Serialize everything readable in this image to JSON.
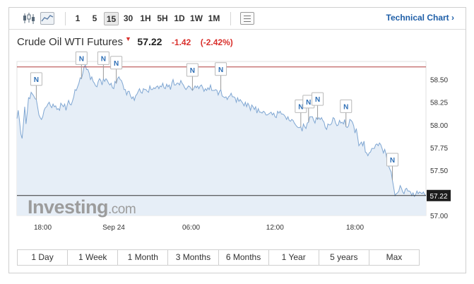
{
  "toolbar": {
    "timeframes": [
      "1",
      "5",
      "15",
      "30",
      "1H",
      "5H",
      "1D",
      "1W",
      "1M"
    ],
    "active_timeframe": "15",
    "technical_chart_label": "Technical Chart ›"
  },
  "header": {
    "instrument": "Crude Oil WTI Futures",
    "price": "57.22",
    "change": "-1.42",
    "change_pct": "(-2.42%)"
  },
  "watermark": {
    "brand": "Investing",
    "suffix": ".com"
  },
  "range_buttons": [
    "1 Day",
    "1 Week",
    "1 Month",
    "3 Months",
    "6 Months",
    "1 Year",
    "5 years",
    "Max"
  ],
  "colors": {
    "down": "#d9302c",
    "link": "#1f5fa8",
    "line": "#7fa6d2",
    "area": "#e6eef7",
    "prev_close": "#b03a3a"
  },
  "chart_data": {
    "type": "area",
    "ylim": [
      57.0,
      58.7
    ],
    "y_ticks": [
      58.5,
      58.25,
      58.0,
      57.75,
      57.5,
      57.0
    ],
    "y_tick_labels": [
      "58.50",
      "58.25",
      "58.00",
      "57.75",
      "57.50",
      "57.00"
    ],
    "x_tick_labels": [
      "18:00",
      "Sep 24",
      "06:00",
      "12:00",
      "18:00"
    ],
    "x_tick_index": [
      20,
      75,
      135,
      200,
      262
    ],
    "last_price": 57.22,
    "last_price_label": "57.22",
    "previous_close": 58.64,
    "news_marker_label": "N",
    "news_markers": [
      15,
      50,
      67,
      77,
      136,
      158,
      220,
      226,
      233,
      255,
      291
    ],
    "values": [
      58.07,
      58.16,
      58.04,
      57.9,
      57.85,
      58.01,
      58.2,
      58.01,
      58.14,
      58.3,
      58.29,
      58.36,
      58.34,
      58.32,
      58.29,
      58.28,
      58.2,
      58.11,
      58.08,
      58.06,
      58.09,
      58.16,
      58.19,
      58.2,
      58.23,
      58.25,
      58.21,
      58.19,
      58.23,
      58.2,
      58.21,
      58.17,
      58.18,
      58.16,
      58.24,
      58.22,
      58.2,
      58.23,
      58.16,
      58.22,
      58.27,
      58.23,
      58.22,
      58.26,
      58.31,
      58.39,
      58.38,
      58.42,
      58.46,
      58.52,
      58.51,
      58.57,
      58.64,
      58.66,
      58.61,
      58.61,
      58.57,
      58.5,
      58.53,
      58.48,
      58.46,
      58.43,
      58.42,
      58.48,
      58.51,
      58.49,
      58.44,
      58.51,
      58.48,
      58.51,
      58.49,
      58.46,
      58.44,
      58.46,
      58.41,
      58.4,
      58.48,
      58.46,
      58.51,
      58.53,
      58.5,
      58.49,
      58.45,
      58.39,
      58.39,
      58.33,
      58.37,
      58.37,
      58.32,
      58.29,
      58.31,
      58.27,
      58.32,
      58.34,
      58.37,
      58.4,
      58.36,
      58.35,
      58.4,
      58.39,
      58.39,
      58.37,
      58.36,
      58.43,
      58.39,
      58.39,
      58.41,
      58.4,
      58.42,
      58.43,
      58.4,
      58.43,
      58.42,
      58.46,
      58.41,
      58.4,
      58.45,
      58.42,
      58.44,
      58.39,
      58.46,
      58.5,
      58.44,
      58.44,
      58.46,
      58.46,
      58.44,
      58.49,
      58.46,
      58.44,
      58.41,
      58.39,
      58.41,
      58.43,
      58.42,
      58.4,
      58.38,
      58.4,
      58.43,
      58.41,
      58.43,
      58.4,
      58.43,
      58.44,
      58.41,
      58.37,
      58.4,
      58.38,
      58.41,
      58.39,
      58.44,
      58.38,
      58.38,
      58.38,
      58.39,
      58.38,
      58.33,
      58.37,
      58.39,
      58.32,
      58.31,
      58.3,
      58.31,
      58.28,
      58.31,
      58.32,
      58.35,
      58.31,
      58.31,
      58.3,
      58.25,
      58.3,
      58.26,
      58.28,
      58.26,
      58.24,
      58.21,
      58.25,
      58.2,
      58.24,
      58.21,
      58.16,
      58.22,
      58.2,
      58.17,
      58.2,
      58.13,
      58.18,
      58.14,
      58.14,
      58.13,
      58.15,
      58.14,
      58.11,
      58.11,
      58.12,
      58.13,
      58.14,
      58.11,
      58.13,
      58.09,
      58.08,
      58.15,
      58.13,
      58.15,
      58.12,
      58.12,
      58.11,
      58.09,
      58.06,
      58.09,
      58.05,
      58.04,
      58.06,
      58.05,
      58.02,
      58.0,
      57.98,
      57.97,
      57.97,
      57.98,
      57.93,
      58.01,
      57.98,
      57.96,
      58.02,
      58.03,
      58.09,
      58.09,
      58.09,
      58.05,
      58.02,
      58.08,
      58.06,
      58.08,
      58.06,
      58.08,
      58.05,
      58.03,
      57.97,
      57.95,
      58.01,
      58.0,
      58.0,
      58.02,
      58.08,
      58.07,
      58.02,
      57.99,
      58.0,
      58.05,
      58.02,
      58.03,
      58.01,
      58.06,
      57.98,
      57.97,
      57.99,
      58.06,
      58.05,
      58.03,
      57.99,
      57.91,
      57.96,
      57.87,
      57.77,
      57.79,
      57.81,
      57.77,
      57.82,
      57.7,
      57.69,
      57.66,
      57.69,
      57.7,
      57.74,
      57.74,
      57.74,
      57.78,
      57.79,
      57.77,
      57.8,
      57.78,
      57.74,
      57.69,
      57.73,
      57.68,
      57.6,
      57.55,
      57.51,
      57.48,
      57.39,
      57.31,
      57.22,
      57.24,
      57.25,
      57.27,
      57.33,
      57.3,
      57.26,
      57.24,
      57.29,
      57.3,
      57.27,
      57.27,
      57.26,
      57.22,
      57.25,
      57.21,
      57.23,
      57.27,
      57.24,
      57.26,
      57.25,
      57.24,
      57.26,
      57.23,
      57.22
    ]
  }
}
